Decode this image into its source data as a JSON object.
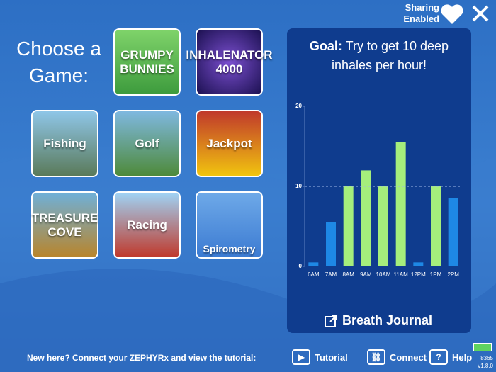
{
  "header": {
    "sharing": "Sharing Enabled",
    "prompt": "Choose a Game:"
  },
  "games": [
    "GRUMPY BUNNIES",
    "INHALENATOR 4000",
    "Fishing",
    "Golf",
    "Jackpot",
    "TREASURE COVE",
    "Racing",
    "Spirometry"
  ],
  "goal": {
    "label": "Goal:",
    "text": "Try to get 10 deep inhales per hour!"
  },
  "chart_data": {
    "type": "bar",
    "categories": [
      "6AM",
      "7AM",
      "8AM",
      "9AM",
      "10AM",
      "11AM",
      "12PM",
      "1PM",
      "2PM"
    ],
    "values": [
      0.5,
      5.5,
      10,
      12,
      10,
      15.5,
      0.5,
      10,
      8.5
    ],
    "colors": [
      "#1e88e5",
      "#1e88e5",
      "#a5ee7c",
      "#a5ee7c",
      "#a5ee7c",
      "#a5ee7c",
      "#1e88e5",
      "#a5ee7c",
      "#1e88e5"
    ],
    "ylim": [
      0,
      20
    ],
    "yticks": [
      0,
      10,
      20
    ],
    "reference_line": 10
  },
  "journal": "Breath Journal",
  "footer": {
    "intro": "New here? Connect your ZEPHYRx and view the tutorial:",
    "tutorial": "Tutorial",
    "connect": "Connect",
    "help": "Help",
    "id": "8365",
    "version": "v1.8.0"
  }
}
